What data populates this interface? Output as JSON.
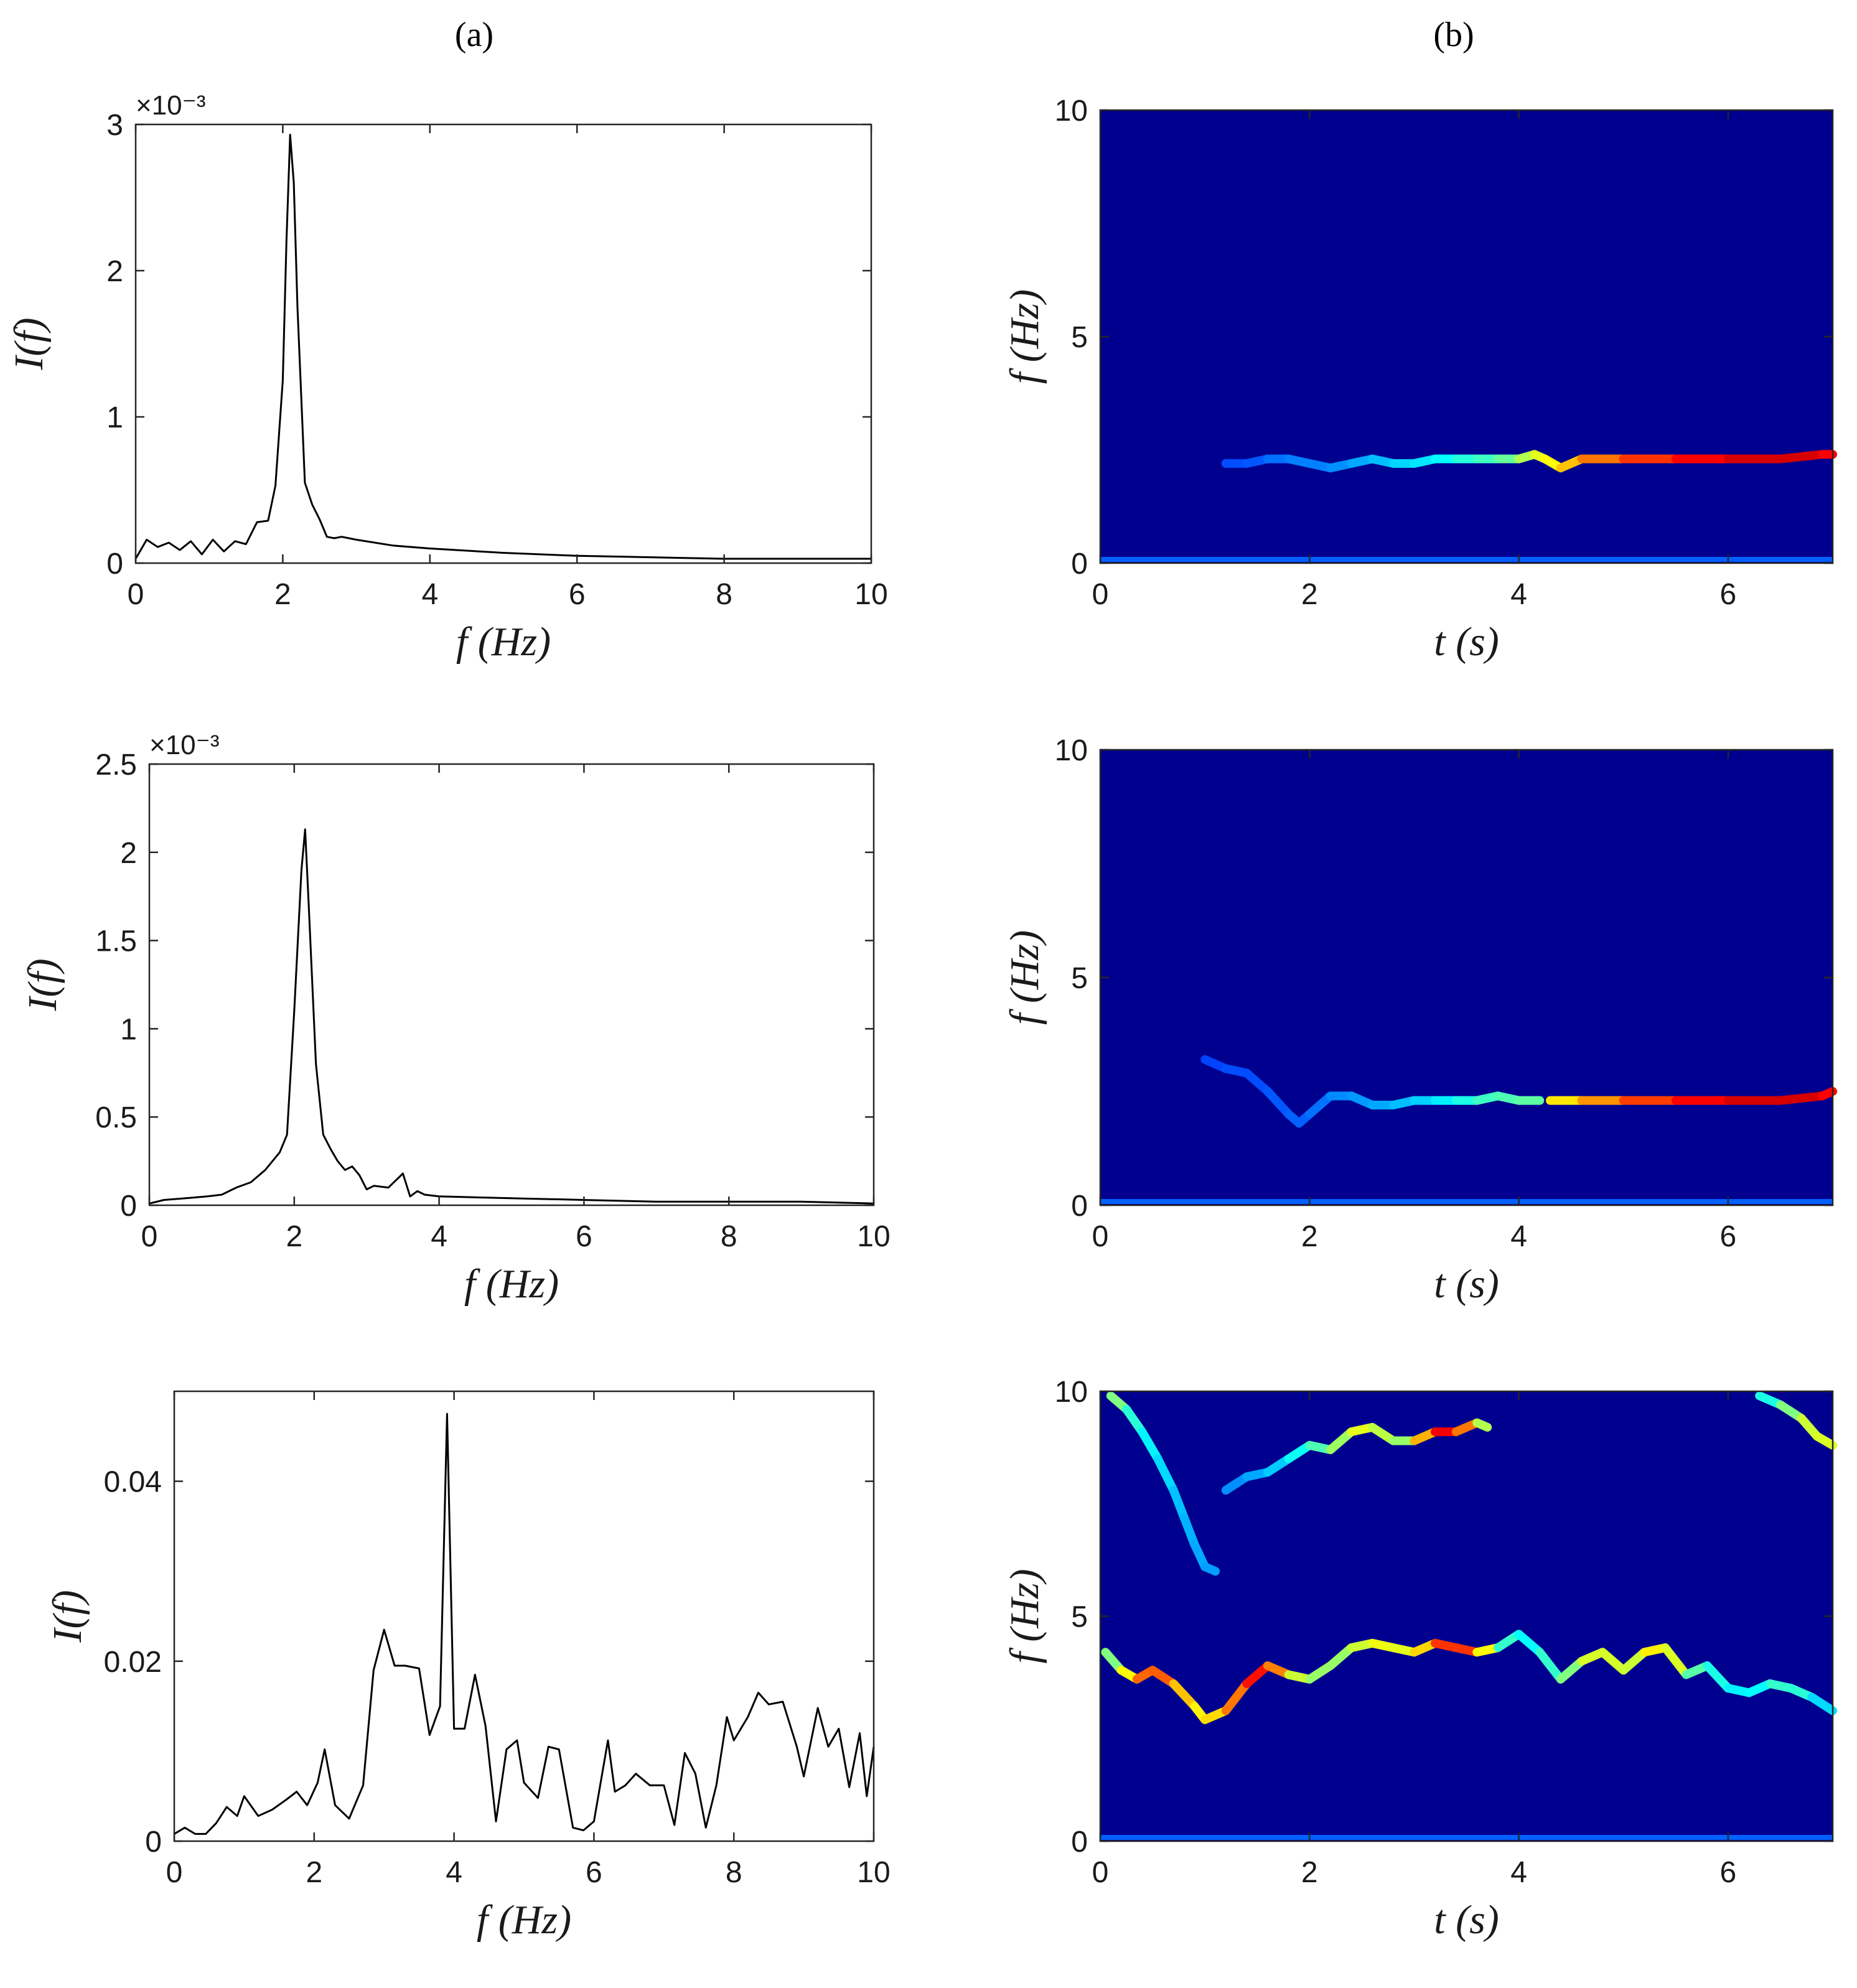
{
  "figure": {
    "panel_a_label": "(a)",
    "panel_b_label": "(b)"
  },
  "colors": {
    "line": "#000000",
    "spectrogram_background": "#00008f",
    "colormap": [
      "#00008f",
      "#0000ff",
      "#0080ff",
      "#00ffff",
      "#80ff80",
      "#ffff00",
      "#ff8000",
      "#ff0000",
      "#800000"
    ]
  },
  "chart_data": [
    {
      "type": "line",
      "panel": "a-1",
      "xlabel": "f  (Hz)",
      "ylabel": "I(f)",
      "xlim": [
        0,
        10
      ],
      "ylim": [
        0,
        0.003
      ],
      "xticks": [
        "0",
        "2",
        "4",
        "6",
        "8",
        "10"
      ],
      "yticks": [
        "0",
        "1",
        "2",
        "3"
      ],
      "ytick_values": [
        0,
        0.001,
        0.002,
        0.003
      ],
      "y_multiplier": "×10⁻³",
      "x": [
        0,
        0.15,
        0.3,
        0.45,
        0.6,
        0.75,
        0.9,
        1.05,
        1.2,
        1.35,
        1.5,
        1.65,
        1.8,
        1.9,
        2.0,
        2.05,
        2.1,
        2.15,
        2.2,
        2.3,
        2.4,
        2.5,
        2.6,
        2.7,
        2.8,
        3.0,
        3.5,
        4.0,
        5.0,
        6.0,
        7.0,
        8.0,
        9.0,
        10.0
      ],
      "y": [
        3e-05,
        0.00016,
        0.00011,
        0.00014,
        9e-05,
        0.00015,
        6e-05,
        0.00016,
        8e-05,
        0.00015,
        0.00013,
        0.00028,
        0.00029,
        0.00053,
        0.00125,
        0.0022,
        0.00293,
        0.0026,
        0.00175,
        0.00055,
        0.0004,
        0.0003,
        0.00018,
        0.00017,
        0.00018,
        0.00016,
        0.00012,
        0.0001,
        7e-05,
        5e-05,
        4e-05,
        3e-05,
        3e-05,
        3e-05
      ]
    },
    {
      "type": "heatmap",
      "panel": "b-1",
      "xlabel": "t  (s)",
      "ylabel": "f  (Hz)",
      "xlim": [
        0,
        7
      ],
      "ylim": [
        0,
        10
      ],
      "xticks": [
        "0",
        "2",
        "4",
        "6"
      ],
      "yticks": [
        "0",
        "5",
        "10"
      ],
      "ridges": [
        {
          "t": [
            1.2,
            1.4,
            1.6,
            1.8,
            2.0,
            2.2,
            2.4,
            2.6,
            2.8,
            3.0,
            3.2,
            3.4,
            3.6,
            3.8,
            4.0,
            4.15,
            4.25,
            4.4,
            4.6,
            5.0,
            5.5,
            6.0,
            6.5,
            6.9,
            7.0
          ],
          "f": [
            2.2,
            2.2,
            2.3,
            2.3,
            2.2,
            2.1,
            2.2,
            2.3,
            2.2,
            2.2,
            2.3,
            2.3,
            2.3,
            2.3,
            2.3,
            2.4,
            2.3,
            2.1,
            2.3,
            2.3,
            2.3,
            2.3,
            2.3,
            2.4,
            2.4
          ],
          "intensity": [
            0.2,
            0.2,
            0.22,
            0.25,
            0.25,
            0.25,
            0.28,
            0.3,
            0.32,
            0.35,
            0.35,
            0.4,
            0.42,
            0.45,
            0.5,
            0.6,
            0.6,
            0.65,
            0.72,
            0.8,
            0.85,
            0.9,
            0.93,
            0.9,
            0.85
          ]
        }
      ]
    },
    {
      "type": "line",
      "panel": "a-2",
      "xlabel": "f  (Hz)",
      "ylabel": "I(f)",
      "xlim": [
        0,
        10
      ],
      "ylim": [
        0,
        0.0025
      ],
      "xticks": [
        "0",
        "2",
        "4",
        "6",
        "8",
        "10"
      ],
      "yticks": [
        "0",
        "0.5",
        "1",
        "1.5",
        "2",
        "2.5"
      ],
      "ytick_values": [
        0,
        0.0005,
        0.001,
        0.0015,
        0.002,
        0.0025
      ],
      "y_multiplier": "×10⁻³",
      "x": [
        0,
        0.2,
        0.5,
        0.8,
        1.0,
        1.2,
        1.4,
        1.6,
        1.8,
        1.9,
        2.0,
        2.1,
        2.15,
        2.2,
        2.3,
        2.4,
        2.5,
        2.6,
        2.7,
        2.8,
        2.9,
        3.0,
        3.1,
        3.3,
        3.5,
        3.6,
        3.7,
        3.8,
        4.0,
        5.0,
        6.0,
        7.0,
        8.0,
        9.0,
        10.0
      ],
      "y": [
        1e-05,
        3e-05,
        4e-05,
        5e-05,
        6e-05,
        0.0001,
        0.00013,
        0.0002,
        0.0003,
        0.0004,
        0.0011,
        0.0019,
        0.00213,
        0.0017,
        0.0008,
        0.0004,
        0.00032,
        0.00025,
        0.0002,
        0.00022,
        0.00017,
        9e-05,
        0.00011,
        0.0001,
        0.00018,
        5e-05,
        8e-05,
        6e-05,
        5e-05,
        4e-05,
        3e-05,
        2e-05,
        2e-05,
        2e-05,
        1e-05
      ]
    },
    {
      "type": "heatmap",
      "panel": "b-2",
      "xlabel": "t  (s)",
      "ylabel": "f  (Hz)",
      "xlim": [
        0,
        7
      ],
      "ylim": [
        0,
        10
      ],
      "xticks": [
        "0",
        "2",
        "4",
        "6"
      ],
      "yticks": [
        "0",
        "5",
        "10"
      ],
      "ridges": [
        {
          "t": [
            1.0,
            1.2,
            1.4,
            1.6,
            1.8,
            1.9,
            2.0,
            2.2,
            2.4,
            2.6,
            2.8,
            3.0,
            3.2,
            3.4,
            3.6,
            3.8,
            4.0,
            4.2
          ],
          "f": [
            3.2,
            3.0,
            2.9,
            2.5,
            2.0,
            1.8,
            2.0,
            2.4,
            2.4,
            2.2,
            2.2,
            2.3,
            2.3,
            2.3,
            2.3,
            2.4,
            2.3,
            2.3
          ],
          "intensity": [
            0.18,
            0.2,
            0.2,
            0.2,
            0.22,
            0.22,
            0.22,
            0.25,
            0.27,
            0.28,
            0.3,
            0.32,
            0.34,
            0.38,
            0.42,
            0.45,
            0.45,
            0.48
          ]
        },
        {
          "t": [
            4.3,
            4.6,
            5.0,
            5.5,
            6.0,
            6.5,
            6.9,
            7.0
          ],
          "f": [
            2.3,
            2.3,
            2.3,
            2.3,
            2.3,
            2.3,
            2.4,
            2.5
          ],
          "intensity": [
            0.62,
            0.68,
            0.78,
            0.85,
            0.9,
            0.93,
            0.9,
            0.85
          ]
        }
      ]
    },
    {
      "type": "line",
      "panel": "a-3",
      "xlabel": "f  (Hz)",
      "ylabel": "I(f)",
      "xlim": [
        0,
        10
      ],
      "ylim": [
        0,
        0.05
      ],
      "xticks": [
        "0",
        "2",
        "4",
        "6",
        "8",
        "10"
      ],
      "yticks": [
        "0",
        "0.02",
        "0.04"
      ],
      "ytick_values": [
        0,
        0.02,
        0.04
      ],
      "y_multiplier": "",
      "x": [
        0,
        0.15,
        0.3,
        0.45,
        0.6,
        0.75,
        0.9,
        1.0,
        1.2,
        1.4,
        1.6,
        1.75,
        1.9,
        2.05,
        2.15,
        2.3,
        2.5,
        2.7,
        2.85,
        3.0,
        3.15,
        3.3,
        3.5,
        3.65,
        3.8,
        3.9,
        4.0,
        4.15,
        4.3,
        4.45,
        4.6,
        4.75,
        4.9,
        5.0,
        5.2,
        5.35,
        5.5,
        5.7,
        5.85,
        6.0,
        6.2,
        6.3,
        6.45,
        6.6,
        6.8,
        7.0,
        7.15,
        7.3,
        7.45,
        7.6,
        7.75,
        7.9,
        8.0,
        8.2,
        8.35,
        8.5,
        8.7,
        8.9,
        9.0,
        9.2,
        9.35,
        9.5,
        9.65,
        9.8,
        9.9,
        10.0
      ],
      "y": [
        0.0008,
        0.0015,
        0.0008,
        0.0008,
        0.002,
        0.0038,
        0.0028,
        0.005,
        0.0028,
        0.0035,
        0.0046,
        0.0055,
        0.004,
        0.0065,
        0.0102,
        0.004,
        0.0025,
        0.0062,
        0.019,
        0.0235,
        0.0195,
        0.0195,
        0.0192,
        0.0118,
        0.015,
        0.0475,
        0.0125,
        0.0125,
        0.0185,
        0.0128,
        0.0022,
        0.0102,
        0.0112,
        0.0065,
        0.0048,
        0.0105,
        0.0102,
        0.0015,
        0.0012,
        0.0022,
        0.0112,
        0.0055,
        0.0062,
        0.0075,
        0.0062,
        0.0062,
        0.0018,
        0.0098,
        0.0075,
        0.0015,
        0.0062,
        0.0138,
        0.0112,
        0.0138,
        0.0165,
        0.0152,
        0.0155,
        0.0105,
        0.0072,
        0.0148,
        0.0105,
        0.0125,
        0.006,
        0.012,
        0.005,
        0.0105
      ]
    },
    {
      "type": "heatmap",
      "panel": "b-3",
      "xlabel": "t  (s)",
      "ylabel": "f  (Hz)",
      "xlim": [
        0,
        7
      ],
      "ylim": [
        0,
        10
      ],
      "xticks": [
        "0",
        "2",
        "4",
        "6"
      ],
      "yticks": [
        "0",
        "5",
        "10"
      ],
      "ridges": [
        {
          "t": [
            0.05,
            0.2,
            0.35,
            0.5,
            0.7,
            0.9,
            1.0,
            1.2,
            1.4,
            1.6,
            1.8,
            2.0,
            2.2,
            2.4,
            2.6,
            2.8,
            3.0,
            3.2,
            3.4,
            3.6,
            3.8,
            4.0,
            4.2,
            4.4,
            4.6,
            4.8,
            5.0,
            5.2,
            5.4,
            5.6,
            5.8,
            6.0,
            6.2,
            6.4,
            6.6,
            6.8,
            7.0
          ],
          "f": [
            4.2,
            3.8,
            3.6,
            3.8,
            3.5,
            3.0,
            2.7,
            2.9,
            3.5,
            3.9,
            3.7,
            3.6,
            3.9,
            4.3,
            4.4,
            4.3,
            4.2,
            4.4,
            4.3,
            4.2,
            4.3,
            4.6,
            4.2,
            3.6,
            4.0,
            4.2,
            3.8,
            4.2,
            4.3,
            3.7,
            3.9,
            3.4,
            3.3,
            3.5,
            3.4,
            3.2,
            2.9
          ],
          "intensity": [
            0.45,
            0.55,
            0.7,
            0.85,
            0.72,
            0.65,
            0.62,
            0.7,
            0.82,
            0.9,
            0.6,
            0.55,
            0.5,
            0.55,
            0.6,
            0.62,
            0.58,
            0.75,
            0.9,
            0.75,
            0.5,
            0.35,
            0.4,
            0.45,
            0.55,
            0.62,
            0.55,
            0.6,
            0.68,
            0.5,
            0.42,
            0.38,
            0.35,
            0.4,
            0.45,
            0.38,
            0.3
          ]
        },
        {
          "t": [
            0.1,
            0.25,
            0.4,
            0.55,
            0.7,
            0.8,
            0.9,
            1.0,
            1.1
          ],
          "f": [
            9.9,
            9.6,
            9.1,
            8.5,
            7.8,
            7.2,
            6.6,
            6.1,
            6.0
          ],
          "intensity": [
            0.55,
            0.45,
            0.38,
            0.35,
            0.33,
            0.3,
            0.3,
            0.28,
            0.28
          ]
        },
        {
          "t": [
            1.2,
            1.4,
            1.6,
            1.8,
            2.0,
            2.2,
            2.4,
            2.6,
            2.8,
            3.0,
            3.2,
            3.4,
            3.6,
            3.7
          ],
          "f": [
            7.8,
            8.1,
            8.2,
            8.5,
            8.8,
            8.7,
            9.1,
            9.2,
            8.9,
            8.9,
            9.1,
            9.1,
            9.3,
            9.2
          ],
          "intensity": [
            0.25,
            0.28,
            0.3,
            0.35,
            0.42,
            0.48,
            0.58,
            0.62,
            0.5,
            0.55,
            0.85,
            0.92,
            0.6,
            0.5
          ]
        },
        {
          "t": [
            6.3,
            6.5,
            6.7,
            6.85,
            7.0
          ],
          "f": [
            9.9,
            9.7,
            9.4,
            9.0,
            8.8
          ],
          "intensity": [
            0.35,
            0.45,
            0.55,
            0.6,
            0.58
          ]
        }
      ]
    }
  ]
}
